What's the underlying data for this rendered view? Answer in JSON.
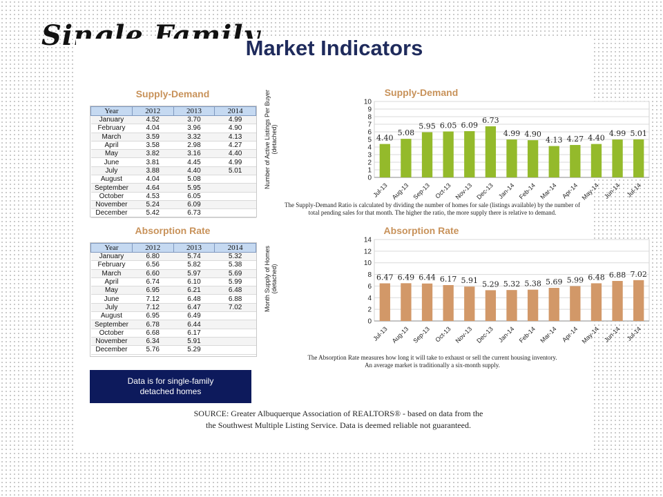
{
  "slide_title": "Single Family",
  "main_title": "Market Indicators",
  "supply_demand": {
    "table_title": "Supply-Demand",
    "chart_title": "Supply-Demand",
    "headers": [
      "Year",
      "2012",
      "2013",
      "2014"
    ],
    "rows": [
      [
        "January",
        "4.52",
        "3.70",
        "4.99"
      ],
      [
        "February",
        "4.04",
        "3.96",
        "4.90"
      ],
      [
        "March",
        "3.59",
        "3.32",
        "4.13"
      ],
      [
        "April",
        "3.58",
        "2.98",
        "4.27"
      ],
      [
        "May",
        "3.82",
        "3.16",
        "4.40"
      ],
      [
        "June",
        "3.81",
        "4.45",
        "4.99"
      ],
      [
        "July",
        "3.88",
        "4.40",
        "5.01"
      ],
      [
        "August",
        "4.04",
        "5.08",
        ""
      ],
      [
        "September",
        "4.64",
        "5.95",
        ""
      ],
      [
        "October",
        "4.53",
        "6.05",
        ""
      ],
      [
        "November",
        "5.24",
        "6.09",
        ""
      ],
      [
        "December",
        "5.42",
        "6.73",
        ""
      ]
    ],
    "caption": "The Supply-Demand Ratio is calculated by dividing the number of homes for sale (listings available) by the number of total pending sales for that month.  The higher the ratio, the more supply there is relative to demand."
  },
  "absorption": {
    "table_title": "Absorption Rate",
    "chart_title": "Absorption Rate",
    "headers": [
      "Year",
      "2012",
      "2013",
      "2014"
    ],
    "rows": [
      [
        "January",
        "6.80",
        "5.74",
        "5.32"
      ],
      [
        "February",
        "6.56",
        "5.82",
        "5.38"
      ],
      [
        "March",
        "6.60",
        "5.97",
        "5.69"
      ],
      [
        "April",
        "6.74",
        "6.10",
        "5.99"
      ],
      [
        "May",
        "6.95",
        "6.21",
        "6.48"
      ],
      [
        "June",
        "7.12",
        "6.48",
        "6.88"
      ],
      [
        "July",
        "7.12",
        "6.47",
        "7.02"
      ],
      [
        "August",
        "6.95",
        "6.49",
        ""
      ],
      [
        "September",
        "6.78",
        "6.44",
        ""
      ],
      [
        "October",
        "6.68",
        "6.17",
        ""
      ],
      [
        "November",
        "6.34",
        "5.91",
        ""
      ],
      [
        "December",
        "5.76",
        "5.29",
        ""
      ]
    ],
    "caption_line1": "The Absorption Rate measures how long it will take to exhaust or sell the current housing inventory.",
    "caption_line2": "An average market is traditionally a six-month supply."
  },
  "note": "Data is for single-family detached homes",
  "source_line1": "SOURCE: Greater Albuquerque Association of REALTORS® - based on data from the",
  "source_line2": "the Southwest Multiple Listing Service. Data is deemed reliable not guaranteed.",
  "colors": {
    "supply_bar": "#94ba2b",
    "absorption_bar": "#d29868",
    "title_navy": "#1f2b5c",
    "section_tan": "#c8925a"
  },
  "chart_data": [
    {
      "type": "bar",
      "title": "Supply-Demand",
      "ylabel": "Number of Active Listings Per Buyer (detached)",
      "categories": [
        "Jul-13",
        "Aug-13",
        "Sep-13",
        "Oct-13",
        "Nov-13",
        "Dec-13",
        "Jan-14",
        "Feb-14",
        "Mar-14",
        "Apr-14",
        "May-14",
        "Jun-14",
        "Jul-14"
      ],
      "values": [
        4.4,
        5.08,
        5.95,
        6.05,
        6.09,
        6.73,
        4.99,
        4.9,
        4.13,
        4.27,
        4.4,
        4.99,
        5.01
      ],
      "ylim": [
        0,
        10
      ],
      "yticks": [
        0,
        1,
        2,
        3,
        4,
        5,
        6,
        7,
        8,
        9,
        10
      ],
      "grid": true,
      "color": "#94ba2b"
    },
    {
      "type": "bar",
      "title": "Absorption Rate",
      "ylabel": "Month Supply of Homes (detached)",
      "categories": [
        "Jul-13",
        "Aug-13",
        "Sep-13",
        "Oct-13",
        "Nov-13",
        "Dec-13",
        "Jan-14",
        "Feb-14",
        "Mar-14",
        "Apr-14",
        "May-14",
        "Jun-14",
        "Jul-14"
      ],
      "values": [
        6.47,
        6.49,
        6.44,
        6.17,
        5.91,
        5.29,
        5.32,
        5.38,
        5.69,
        5.99,
        6.48,
        6.88,
        7.02
      ],
      "ylim": [
        0,
        14
      ],
      "yticks": [
        0,
        2,
        4,
        6,
        8,
        10,
        12,
        14
      ],
      "grid": true,
      "color": "#d29868"
    }
  ]
}
